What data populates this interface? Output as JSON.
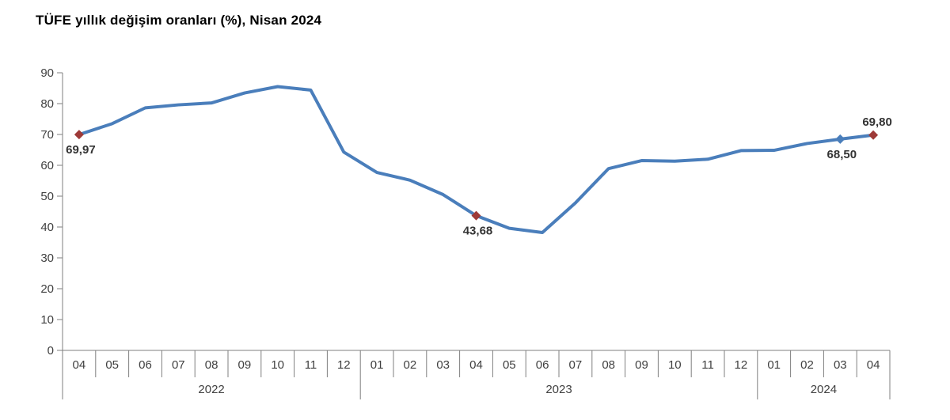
{
  "title": "TÜFE yıllık değişim oranları (%), Nisan 2024",
  "colors": {
    "line": "#4a7ebb",
    "marker_red": "#9e3a38",
    "marker_blue": "#4a7ebb",
    "axis": "#7f7f7f",
    "text": "#404040",
    "label_text": "#333333",
    "background": "#ffffff"
  },
  "chart_data": {
    "type": "line",
    "title": "TÜFE yıllık değişim oranları (%), Nisan 2024",
    "xlabel": "",
    "ylabel": "",
    "ylim": [
      0,
      90
    ],
    "yticks": [
      0,
      10,
      20,
      30,
      40,
      50,
      60,
      70,
      80,
      90
    ],
    "grid": false,
    "legend": "none",
    "months": [
      "04",
      "05",
      "06",
      "07",
      "08",
      "09",
      "10",
      "11",
      "12",
      "01",
      "02",
      "03",
      "04",
      "05",
      "06",
      "07",
      "08",
      "09",
      "10",
      "11",
      "12",
      "01",
      "02",
      "03",
      "04"
    ],
    "year_groups": [
      {
        "label": "2022",
        "month_count": 9
      },
      {
        "label": "2023",
        "month_count": 12
      },
      {
        "label": "2024",
        "month_count": 4
      }
    ],
    "values": [
      69.97,
      73.5,
      78.62,
      79.6,
      80.21,
      83.45,
      85.51,
      84.39,
      64.27,
      57.68,
      55.18,
      50.51,
      43.68,
      39.59,
      38.21,
      47.83,
      58.94,
      61.53,
      61.36,
      61.98,
      64.77,
      64.86,
      67.07,
      68.5,
      69.8
    ],
    "annotations": [
      {
        "id": "2022-04",
        "index": 0,
        "label": "69,97",
        "marker": "red",
        "label_pos": "below"
      },
      {
        "id": "2023-04",
        "index": 12,
        "label": "43,68",
        "marker": "red",
        "label_pos": "below"
      },
      {
        "id": "2024-03",
        "index": 23,
        "label": "68,50",
        "marker": "blue",
        "label_pos": "below"
      },
      {
        "id": "2024-04",
        "index": 24,
        "label": "69,80",
        "marker": "red",
        "label_pos": "above"
      }
    ]
  }
}
